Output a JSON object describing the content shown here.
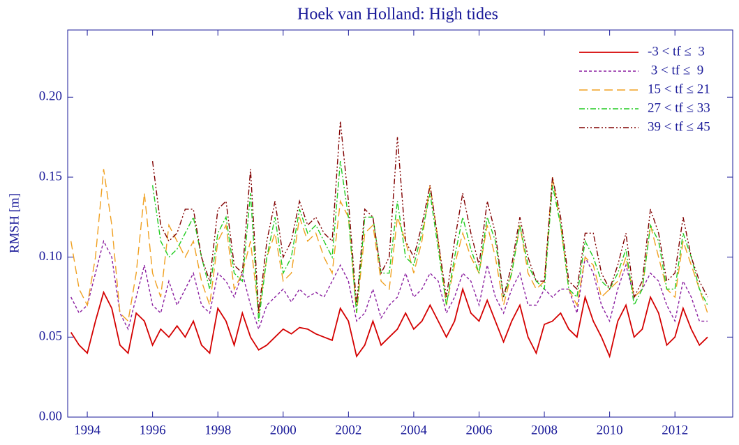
{
  "chart_data": {
    "type": "line",
    "title": "Hoek van Holland:   High tides",
    "y_label": "RMSH [m]",
    "xlim": [
      1993.4,
      2013.77
    ],
    "ylim": [
      0,
      0.242
    ],
    "xticks": [
      1994,
      1996,
      1998,
      2000,
      2002,
      2004,
      2006,
      2008,
      2010,
      2012
    ],
    "yticks": [
      {
        "value": 0,
        "label": "0.00"
      },
      {
        "value": 0.05,
        "label": "0.05"
      },
      {
        "value": 0.1,
        "label": "0.10"
      },
      {
        "value": 0.15,
        "label": "0.15"
      },
      {
        "value": 0.2,
        "label": "0.20"
      }
    ],
    "legend": "upper right",
    "x": [
      1993.5,
      1993.75,
      1994,
      1994.25,
      1994.5,
      1994.75,
      1995,
      1995.25,
      1995.5,
      1995.75,
      1996,
      1996.25,
      1996.5,
      1996.75,
      1997,
      1997.25,
      1997.5,
      1997.75,
      1998,
      1998.25,
      1998.5,
      1998.75,
      1999,
      1999.25,
      1999.5,
      1999.75,
      2000,
      2000.25,
      2000.5,
      2000.75,
      2001,
      2001.25,
      2001.5,
      2001.75,
      2002,
      2002.25,
      2002.5,
      2002.75,
      2003,
      2003.25,
      2003.5,
      2003.75,
      2004,
      2004.25,
      2004.5,
      2004.75,
      2005,
      2005.25,
      2005.5,
      2005.75,
      2006,
      2006.25,
      2006.5,
      2006.75,
      2007,
      2007.25,
      2007.5,
      2007.75,
      2008,
      2008.25,
      2008.5,
      2008.75,
      2009,
      2009.25,
      2009.5,
      2009.75,
      2010,
      2010.25,
      2010.5,
      2010.75,
      2011,
      2011.25,
      2011.5,
      2011.75,
      2012,
      2012.25,
      2012.5,
      2012.75,
      2013
    ],
    "series": [
      {
        "name": "-3 < tf ≤  3",
        "color": "#d40000",
        "style": "solid",
        "values": [
          0.053,
          0.045,
          0.04,
          0.06,
          0.078,
          0.068,
          0.045,
          0.04,
          0.065,
          0.06,
          0.045,
          0.055,
          0.05,
          0.057,
          0.05,
          0.06,
          0.045,
          0.04,
          0.068,
          0.06,
          0.045,
          0.065,
          0.05,
          0.042,
          0.045,
          0.05,
          0.055,
          0.052,
          0.056,
          0.055,
          0.052,
          0.05,
          0.048,
          0.068,
          0.06,
          0.038,
          0.045,
          0.06,
          0.045,
          0.05,
          0.055,
          0.065,
          0.055,
          0.06,
          0.07,
          0.06,
          0.05,
          0.06,
          0.08,
          0.065,
          0.06,
          0.073,
          0.06,
          0.047,
          0.06,
          0.07,
          0.05,
          0.04,
          0.058,
          0.06,
          0.065,
          0.055,
          0.05,
          0.075,
          0.06,
          0.05,
          0.038,
          0.06,
          0.07,
          0.05,
          0.055,
          0.075,
          0.065,
          0.045,
          0.05,
          0.068,
          0.055,
          0.045,
          0.05
        ]
      },
      {
        "name": " 3 < tf ≤  9",
        "color": "#8b1fa0",
        "style": "dotted",
        "values": [
          0.075,
          0.065,
          0.07,
          0.09,
          0.11,
          0.1,
          0.065,
          0.055,
          0.075,
          0.095,
          0.07,
          0.065,
          0.085,
          0.07,
          0.08,
          0.09,
          0.07,
          0.065,
          0.09,
          0.085,
          0.075,
          0.09,
          0.07,
          0.055,
          0.07,
          0.075,
          0.08,
          0.072,
          0.08,
          0.075,
          0.078,
          0.075,
          0.085,
          0.095,
          0.085,
          0.06,
          0.065,
          0.08,
          0.062,
          0.07,
          0.075,
          0.09,
          0.075,
          0.08,
          0.09,
          0.085,
          0.065,
          0.075,
          0.09,
          0.085,
          0.07,
          0.095,
          0.075,
          0.065,
          0.08,
          0.09,
          0.07,
          0.07,
          0.08,
          0.075,
          0.08,
          0.08,
          0.065,
          0.1,
          0.09,
          0.07,
          0.06,
          0.08,
          0.095,
          0.075,
          0.08,
          0.09,
          0.085,
          0.07,
          0.06,
          0.085,
          0.075,
          0.06,
          0.06
        ]
      },
      {
        "name": "15 < tf ≤ 21",
        "color": "#f0a020",
        "style": "dashed",
        "values": [
          0.11,
          0.08,
          0.07,
          0.1,
          0.155,
          0.12,
          0.065,
          0.06,
          0.09,
          0.14,
          0.09,
          0.075,
          0.12,
          0.11,
          0.1,
          0.11,
          0.085,
          0.07,
          0.11,
          0.12,
          0.08,
          0.09,
          0.11,
          0.065,
          0.1,
          0.115,
          0.085,
          0.09,
          0.125,
          0.11,
          0.115,
          0.1,
          0.09,
          0.135,
          0.125,
          0.065,
          0.115,
          0.12,
          0.085,
          0.08,
          0.125,
          0.11,
          0.09,
          0.11,
          0.145,
          0.11,
          0.07,
          0.095,
          0.115,
          0.1,
          0.09,
          0.12,
          0.1,
          0.07,
          0.09,
          0.12,
          0.09,
          0.08,
          0.085,
          0.15,
          0.12,
          0.08,
          0.07,
          0.1,
          0.095,
          0.075,
          0.08,
          0.085,
          0.1,
          0.075,
          0.08,
          0.12,
          0.1,
          0.08,
          0.075,
          0.11,
          0.095,
          0.08,
          0.065
        ]
      },
      {
        "name": "27 < tf ≤ 33",
        "color": "#22cc22",
        "style": "dashdot",
        "values": [
          null,
          null,
          null,
          null,
          null,
          null,
          null,
          null,
          null,
          null,
          0.145,
          0.11,
          0.1,
          0.105,
          0.115,
          0.125,
          0.1,
          0.08,
          0.115,
          0.125,
          0.09,
          0.085,
          0.14,
          0.06,
          0.1,
          0.125,
          0.09,
          0.1,
          0.13,
          0.115,
          0.12,
          0.11,
          0.1,
          0.16,
          0.125,
          0.065,
          0.125,
          0.125,
          0.09,
          0.09,
          0.135,
          0.1,
          0.095,
          0.115,
          0.14,
          0.105,
          0.07,
          0.1,
          0.125,
          0.105,
          0.09,
          0.125,
          0.11,
          0.075,
          0.09,
          0.12,
          0.095,
          0.085,
          0.08,
          0.145,
          0.12,
          0.08,
          0.075,
          0.11,
          0.1,
          0.085,
          0.08,
          0.09,
          0.105,
          0.07,
          0.08,
          0.12,
          0.11,
          0.08,
          0.08,
          0.115,
          0.1,
          0.08,
          0.07
        ]
      },
      {
        "name": "39 < tf ≤ 45",
        "color": "#800000",
        "style": "dashdotdot",
        "values": [
          null,
          null,
          null,
          null,
          null,
          null,
          null,
          null,
          null,
          null,
          0.16,
          0.12,
          0.11,
          0.115,
          0.13,
          0.13,
          0.1,
          0.085,
          0.13,
          0.135,
          0.095,
          0.09,
          0.155,
          0.065,
          0.11,
          0.135,
          0.1,
          0.11,
          0.135,
          0.12,
          0.125,
          0.115,
          0.11,
          0.185,
          0.135,
          0.07,
          0.13,
          0.125,
          0.09,
          0.1,
          0.175,
          0.11,
          0.1,
          0.12,
          0.145,
          0.11,
          0.075,
          0.11,
          0.14,
          0.115,
          0.095,
          0.135,
          0.115,
          0.075,
          0.095,
          0.125,
          0.1,
          0.085,
          0.085,
          0.15,
          0.125,
          0.085,
          0.08,
          0.115,
          0.115,
          0.09,
          0.08,
          0.095,
          0.115,
          0.075,
          0.085,
          0.13,
          0.115,
          0.085,
          0.09,
          0.125,
          0.1,
          0.085,
          0.075
        ]
      }
    ]
  }
}
